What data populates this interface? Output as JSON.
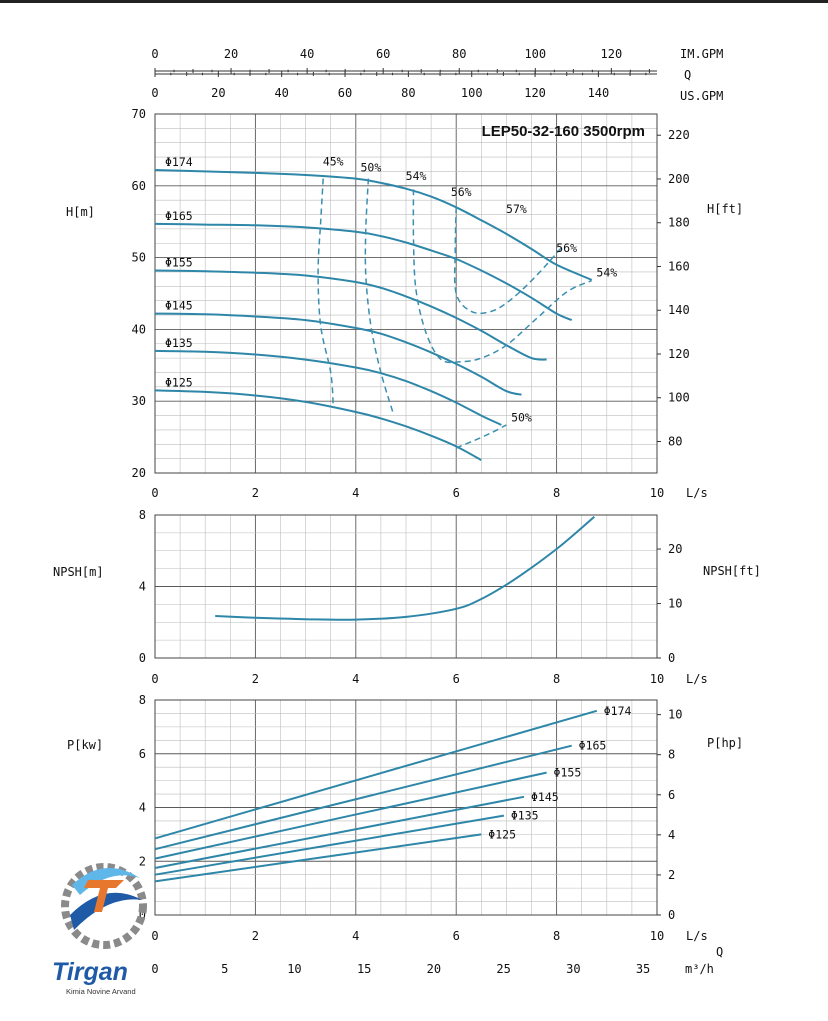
{
  "chart_data": {
    "type": "line",
    "title": "LEP50-32-160 3500rpm",
    "flow_axes": {
      "ls": {
        "unit": "L/s",
        "range": [
          0,
          10
        ],
        "ticks": [
          "0",
          "2",
          "4",
          "6",
          "8",
          "10"
        ],
        "flow_label": "Q"
      },
      "im_gpm": {
        "unit": "IM.GPM",
        "range": [
          0,
          132
        ],
        "ticks": [
          "0",
          "20",
          "40",
          "60",
          "80",
          "100",
          "120"
        ]
      },
      "us_gpm": {
        "unit": "US.GPM",
        "range": [
          0,
          158.5
        ],
        "ticks": [
          "0",
          "20",
          "40",
          "60",
          "80",
          "100",
          "120",
          "140"
        ],
        "flow_label": "Q"
      },
      "m3h": {
        "unit": "m³/h",
        "range": [
          0,
          36
        ],
        "ticks": [
          "0",
          "5",
          "10",
          "15",
          "20",
          "25",
          "30",
          "35"
        ],
        "flow_label": "Q"
      }
    },
    "panels": {
      "head": {
        "ylabel": "H[m]",
        "ylabel_right": "H[ft]",
        "ylim": [
          20,
          70
        ],
        "yticks": [
          "20",
          "30",
          "40",
          "50",
          "60",
          "70"
        ],
        "ylim_right_ft": [
          65.6,
          229.7
        ],
        "yticks_right": [
          "80",
          "100",
          "120",
          "140",
          "160",
          "180",
          "200",
          "220"
        ],
        "series": [
          {
            "name": "Φ174",
            "points": [
              [
                0,
                62.2
              ],
              [
                2,
                61.8
              ],
              [
                3,
                61.5
              ],
              [
                4,
                61
              ],
              [
                4.5,
                60.4
              ],
              [
                5,
                59.6
              ],
              [
                5.5,
                58.5
              ],
              [
                6,
                57
              ],
              [
                6.5,
                55.2
              ],
              [
                7,
                53.3
              ],
              [
                7.5,
                51.2
              ],
              [
                8,
                49
              ],
              [
                8.7,
                46.9
              ]
            ]
          },
          {
            "name": "Φ165",
            "points": [
              [
                0,
                54.7
              ],
              [
                1,
                54.6
              ],
              [
                2,
                54.5
              ],
              [
                3,
                54.2
              ],
              [
                4,
                53.6
              ],
              [
                4.5,
                53
              ],
              [
                5,
                52.1
              ],
              [
                5.5,
                51
              ],
              [
                6,
                49.8
              ],
              [
                6.5,
                48.2
              ],
              [
                7,
                46.4
              ],
              [
                7.5,
                44.4
              ],
              [
                8,
                42.2
              ],
              [
                8.3,
                41.3
              ]
            ]
          },
          {
            "name": "Φ155",
            "points": [
              [
                0,
                48.2
              ],
              [
                1,
                48.1
              ],
              [
                2,
                47.9
              ],
              [
                3,
                47.5
              ],
              [
                4,
                46.6
              ],
              [
                4.5,
                45.8
              ],
              [
                5,
                44.6
              ],
              [
                5.5,
                43.2
              ],
              [
                6,
                41.6
              ],
              [
                6.5,
                39.8
              ],
              [
                7,
                37.8
              ],
              [
                7.5,
                36
              ],
              [
                7.8,
                35.8
              ]
            ]
          },
          {
            "name": "Φ145",
            "points": [
              [
                0,
                42.2
              ],
              [
                1,
                42.1
              ],
              [
                2,
                41.8
              ],
              [
                3,
                41.3
              ],
              [
                4,
                40.2
              ],
              [
                4.5,
                39.4
              ],
              [
                5,
                38.2
              ],
              [
                5.5,
                36.8
              ],
              [
                6,
                35.2
              ],
              [
                6.5,
                33.4
              ],
              [
                7,
                31.4
              ],
              [
                7.3,
                30.9
              ]
            ]
          },
          {
            "name": "Φ135",
            "points": [
              [
                0,
                37
              ],
              [
                1,
                36.9
              ],
              [
                2,
                36.5
              ],
              [
                3,
                35.8
              ],
              [
                4,
                34.7
              ],
              [
                4.5,
                33.9
              ],
              [
                5,
                32.8
              ],
              [
                5.5,
                31.4
              ],
              [
                6,
                29.8
              ],
              [
                6.5,
                28
              ],
              [
                6.9,
                26.7
              ]
            ]
          },
          {
            "name": "Φ125",
            "points": [
              [
                0,
                31.5
              ],
              [
                1,
                31.3
              ],
              [
                2,
                30.8
              ],
              [
                3,
                29.9
              ],
              [
                4,
                28.5
              ],
              [
                4.5,
                27.6
              ],
              [
                5,
                26.5
              ],
              [
                5.5,
                25.2
              ],
              [
                6,
                23.7
              ],
              [
                6.5,
                21.8
              ]
            ]
          }
        ],
        "efficiency": [
          {
            "label": "45%",
            "points": [
              [
                3.35,
                61
              ],
              [
                3.3,
                55
              ],
              [
                3.25,
                48
              ],
              [
                3.3,
                40.5
              ],
              [
                3.5,
                34
              ],
              [
                3.55,
                29.5
              ]
            ]
          },
          {
            "label": "50%",
            "points": [
              [
                4.25,
                61
              ],
              [
                4.2,
                54
              ],
              [
                4.2,
                47.5
              ],
              [
                4.3,
                40.5
              ],
              [
                4.5,
                34
              ],
              [
                4.75,
                28.2
              ]
            ]
          },
          {
            "label": "54%",
            "points": [
              [
                5.15,
                59.5
              ],
              [
                5.15,
                52.5
              ],
              [
                5.2,
                45.5
              ],
              [
                5.4,
                39.5
              ],
              [
                5.7,
                35.8
              ],
              [
                6.1,
                35.5
              ],
              [
                6.5,
                36
              ],
              [
                7,
                37.8
              ],
              [
                7.6,
                41.5
              ],
              [
                8.2,
                45.2
              ],
              [
                8.7,
                46.8
              ]
            ]
          },
          {
            "label": "56%",
            "points": [
              [
                6,
                57
              ],
              [
                5.98,
                51
              ],
              [
                6,
                45
              ],
              [
                6.3,
                42.5
              ],
              [
                6.7,
                42.5
              ],
              [
                7.1,
                44.2
              ],
              [
                7.6,
                47.5
              ],
              [
                8.1,
                51.4
              ]
            ]
          },
          {
            "label": "57%",
            "points": []
          },
          {
            "label": "50%",
            "points": [
              [
                6,
                23.5
              ],
              [
                6.35,
                24.5
              ],
              [
                6.7,
                25.6
              ],
              [
                7,
                26.7
              ]
            ]
          }
        ],
        "eff_labels": [
          "45%",
          "50%",
          "54%",
          "56%",
          "57%",
          "56%",
          "54%",
          "50%"
        ]
      },
      "npsh": {
        "ylabel": "NPSH[m]",
        "ylabel_right": "NPSH[ft]",
        "ylim": [
          0,
          8
        ],
        "yticks": [
          "0",
          "4",
          "8"
        ],
        "ylim_right_ft": [
          0,
          26.25
        ],
        "yticks_right": [
          "0",
          "10",
          "20"
        ],
        "series": [
          {
            "name": "NPSH",
            "points": [
              [
                1.2,
                2.35
              ],
              [
                2,
                2.25
              ],
              [
                3,
                2.17
              ],
              [
                4,
                2.15
              ],
              [
                5,
                2.3
              ],
              [
                6,
                2.75
              ],
              [
                6.5,
                3.3
              ],
              [
                7,
                4.1
              ],
              [
                7.5,
                5.05
              ],
              [
                8,
                6.1
              ],
              [
                8.3,
                6.8
              ],
              [
                8.75,
                7.9
              ]
            ]
          }
        ]
      },
      "power": {
        "ylabel": "P[kw]",
        "ylabel_right": "P[hp]",
        "ylim": [
          0,
          8
        ],
        "yticks": [
          "0",
          "2",
          "4",
          "6",
          "8"
        ],
        "ylim_right_hp": [
          0,
          10.73
        ],
        "yticks_right": [
          "0",
          "2",
          "4",
          "6",
          "8",
          "10"
        ],
        "series": [
          {
            "name": "Φ174",
            "points": [
              [
                0,
                2.85
              ],
              [
                8.8,
                7.6
              ]
            ]
          },
          {
            "name": "Φ165",
            "points": [
              [
                0,
                2.45
              ],
              [
                8.3,
                6.3
              ]
            ]
          },
          {
            "name": "Φ155",
            "points": [
              [
                0,
                2.1
              ],
              [
                7.8,
                5.3
              ]
            ]
          },
          {
            "name": "Φ145",
            "points": [
              [
                0,
                1.75
              ],
              [
                7.35,
                4.4
              ]
            ]
          },
          {
            "name": "Φ135",
            "points": [
              [
                0,
                1.5
              ],
              [
                6.95,
                3.7
              ]
            ]
          },
          {
            "name": "Φ125",
            "points": [
              [
                0,
                1.25
              ],
              [
                6.5,
                3
              ]
            ]
          }
        ]
      }
    }
  },
  "logo": {
    "name": "Tirgan",
    "subtitle": "Kimia Novine Arvand",
    "colors": {
      "blue": "#1f5aa6",
      "orange": "#e8772e",
      "gray": "#8a8a8a"
    }
  },
  "colors": {
    "curve": "#2e87a8",
    "grid_major": "#5a5a5a",
    "grid_minor": "#bdbdbd"
  }
}
